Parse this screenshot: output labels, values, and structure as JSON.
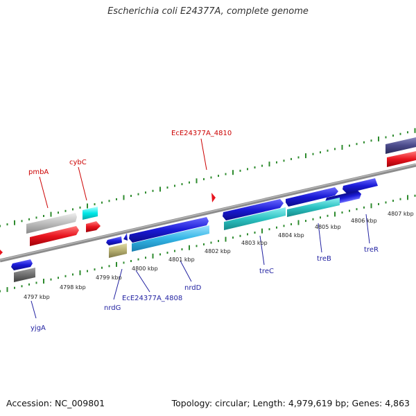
{
  "title": "Escherichia coli E24377A, complete genome",
  "footer": {
    "accession": "Accession: NC_009801",
    "summary": "Topology: circular; Length: 4,979,619 bp; Genes: 4,863"
  },
  "colors": {
    "backbone": "#8c8c8c",
    "tick": "#2e8b2e",
    "red_label": "#cc0000",
    "blue_label": "#0000aa",
    "blue_gene": "#1a1ad6",
    "light_blue_gene": "#33b5e6",
    "cyan_gene": "#2cc2c2",
    "bright_cyan": "#00e8e8",
    "red_gene": "#e8141e",
    "silver_gene": "#bdbdbd",
    "gray_gene": "#6e6e6e",
    "tan_gene": "#b5ae70",
    "navy_gene": "#4a4a8a"
  },
  "scale_labels": [
    "4797 kbp",
    "4798 kbp",
    "4799 kbp",
    "4800 kbp",
    "4801 kbp",
    "4802 kbp",
    "4803 kbp",
    "4804 kbp",
    "4805 kbp",
    "4806 kbp",
    "4807 kbp"
  ],
  "gene_labels_top": [
    "pmbA",
    "cybC",
    "EcE24377A_4810"
  ],
  "gene_labels_bottom": [
    "yjgA",
    "nrdG",
    "EcE24377A_4808",
    "nrdD",
    "treC",
    "treB",
    "treR"
  ]
}
